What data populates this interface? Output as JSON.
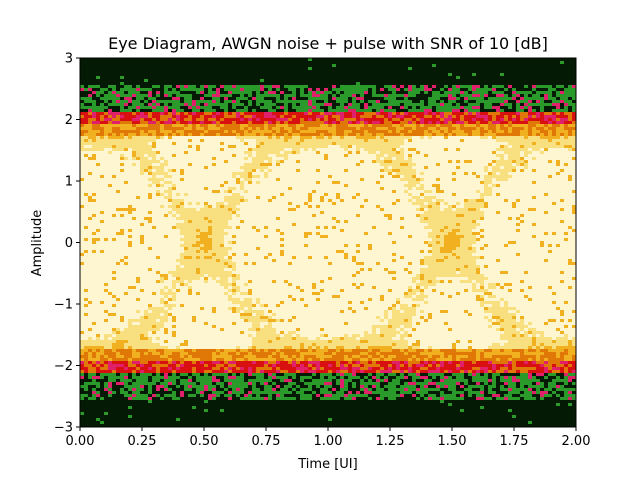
{
  "chart_data": {
    "type": "heatmap",
    "title": "Eye Diagram, AWGN noise + pulse with SNR of 10 [dB]",
    "xlabel": "Time [UI]",
    "ylabel": "Amplitude",
    "xlim": [
      0.0,
      2.0
    ],
    "ylim": [
      -3,
      3
    ],
    "x_ticks": [
      "0.00",
      "0.25",
      "0.50",
      "0.75",
      "1.00",
      "1.25",
      "1.50",
      "1.75",
      "2.00"
    ],
    "x_tick_values": [
      0.0,
      0.25,
      0.5,
      0.75,
      1.0,
      1.25,
      1.5,
      1.75,
      2.0
    ],
    "y_ticks": [
      "3",
      "2",
      "1",
      "0",
      "−1",
      "−2",
      "−3"
    ],
    "y_tick_values": [
      3,
      2,
      1,
      0,
      -1,
      -2,
      -3
    ],
    "grid": false,
    "colormap": [
      "#051a05",
      "#2a9a2a",
      "#e0206a",
      "#d81010",
      "#e07808",
      "#f0b020",
      "#f8e080",
      "#fdf6d0"
    ],
    "background_color": "#041a04",
    "levels": [
      -2,
      2
    ],
    "eye_crossings": [
      0.0,
      1.0,
      2.0
    ],
    "eye_centers": [
      0.5,
      1.5
    ],
    "snr_db": 10
  }
}
